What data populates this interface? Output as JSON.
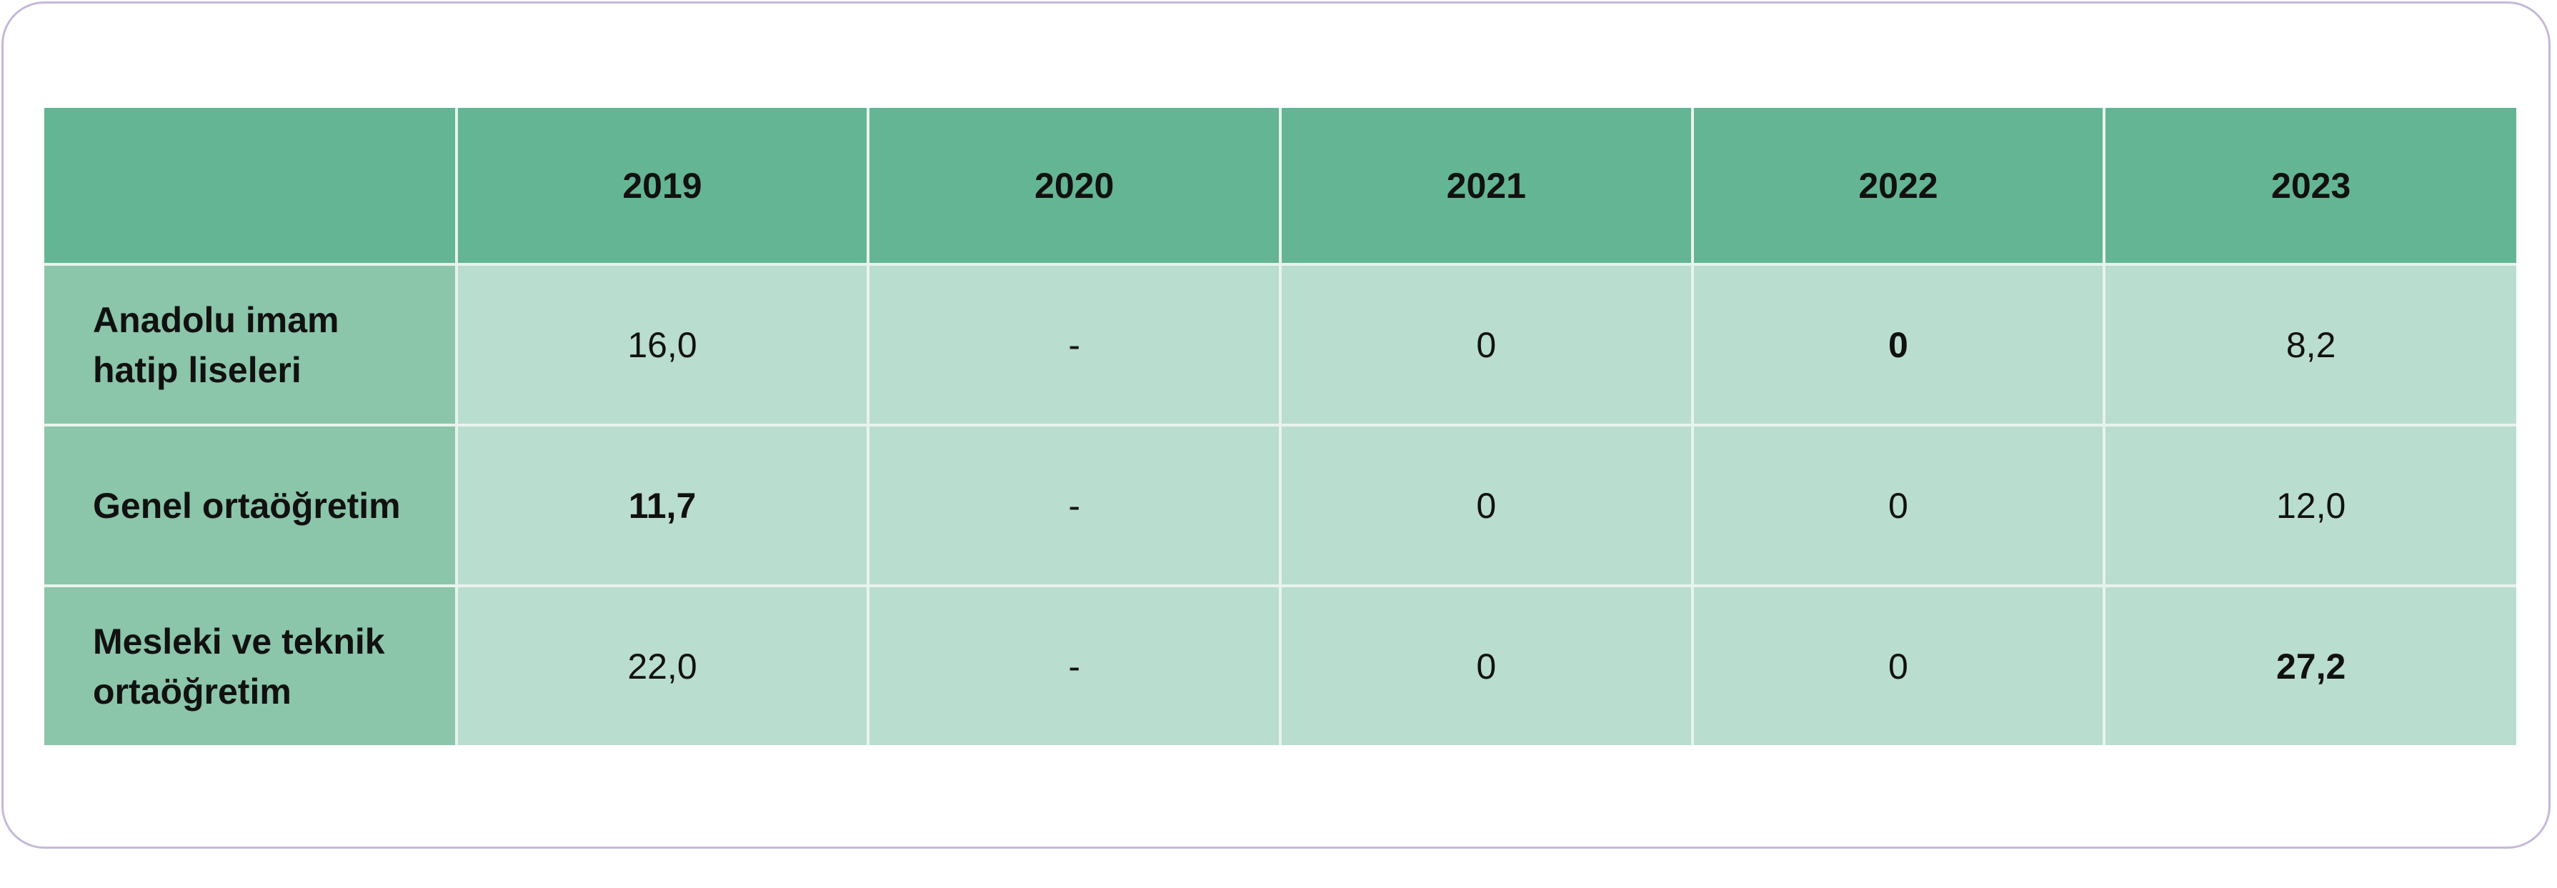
{
  "table": {
    "header": [
      "2019",
      "2020",
      "2021",
      "2022",
      "2023"
    ],
    "rows": [
      [
        "Anadolu imam hatip liseleri",
        "16,0",
        "-",
        "0",
        "0",
        "8,2"
      ],
      [
        "Genel ortaöğretim",
        "11,7",
        "-",
        "0",
        "0",
        "12,0"
      ],
      [
        "Mesleki ve teknik ortaöğretim",
        "22,0",
        "-",
        "0",
        "0",
        "27,2"
      ]
    ]
  }
}
